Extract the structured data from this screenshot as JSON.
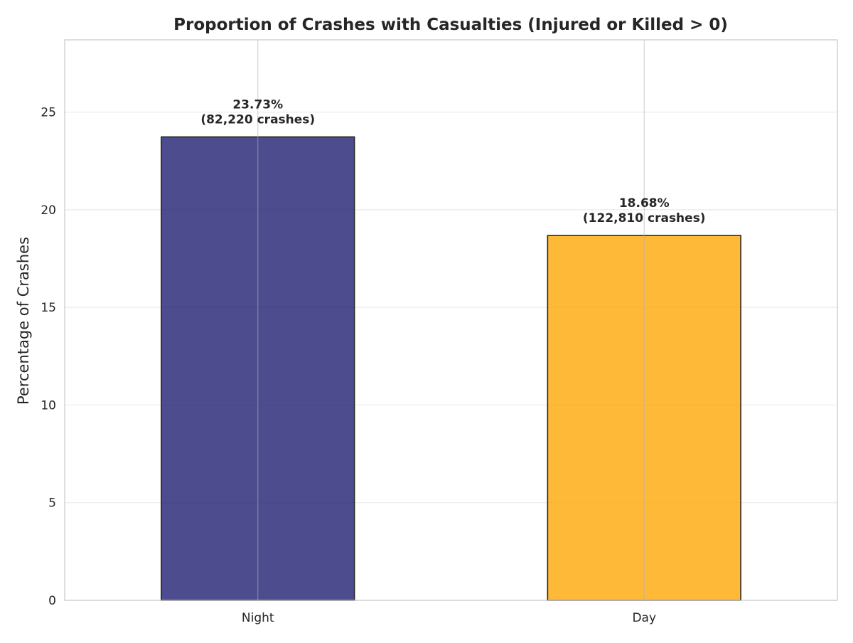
{
  "chart_data": {
    "type": "bar",
    "title": "Proportion of Crashes with Casualties (Injured or Killed > 0)",
    "xlabel": "",
    "ylabel": "Percentage of Crashes",
    "categories": [
      "Night",
      "Day"
    ],
    "values": [
      23.73,
      18.68
    ],
    "bar_labels": [
      [
        "23.73%",
        "(82,220 crashes)"
      ],
      [
        "18.68%",
        "(122,810 crashes)"
      ]
    ],
    "bar_colors": [
      "#191970",
      "#FFA500"
    ],
    "ylim": [
      0,
      28.7
    ],
    "yticks": [
      0,
      5,
      10,
      15,
      20,
      25
    ],
    "grid": true,
    "legend": "none"
  }
}
